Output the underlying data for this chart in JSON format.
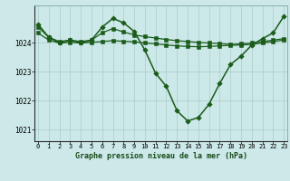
{
  "bg_color": "#cce8e8",
  "grid_color": "#aacccc",
  "line_color": "#1a5c1a",
  "xlim": [
    -0.3,
    23.3
  ],
  "ylim": [
    1020.6,
    1025.3
  ],
  "yticks": [
    1021,
    1022,
    1023,
    1024
  ],
  "xticks": [
    0,
    1,
    2,
    3,
    4,
    5,
    6,
    7,
    8,
    9,
    10,
    11,
    12,
    13,
    14,
    15,
    16,
    17,
    18,
    19,
    20,
    21,
    22,
    23
  ],
  "title": "Graphe pression niveau de la mer (hPa)",
  "series": [
    {
      "x": [
        0,
        1,
        2,
        3,
        4,
        5,
        6,
        7,
        8,
        9,
        10,
        11,
        12,
        13,
        14,
        15,
        16,
        17,
        18,
        19,
        20,
        21,
        22,
        23
      ],
      "y": [
        1024.65,
        1024.2,
        1024.0,
        1024.1,
        1024.0,
        1024.1,
        1024.55,
        1024.85,
        1024.7,
        1024.4,
        1023.75,
        1022.95,
        1022.5,
        1021.65,
        1021.3,
        1021.42,
        1021.88,
        1022.6,
        1023.25,
        1023.55,
        1023.93,
        1024.15,
        1024.35,
        1024.93
      ],
      "marker": "D",
      "markersize": 2.8,
      "linewidth": 1.1
    },
    {
      "x": [
        0,
        1,
        2,
        3,
        4,
        5,
        6,
        7,
        8,
        9,
        10,
        11,
        12,
        13,
        14,
        15,
        16,
        17,
        18,
        19,
        20,
        21,
        22,
        23
      ],
      "y": [
        1024.55,
        1024.2,
        1024.05,
        1024.1,
        1024.05,
        1024.1,
        1024.35,
        1024.5,
        1024.38,
        1024.28,
        1024.22,
        1024.17,
        1024.12,
        1024.08,
        1024.05,
        1024.02,
        1024.0,
        1023.98,
        1023.95,
        1023.97,
        1024.0,
        1024.05,
        1024.1,
        1024.15
      ],
      "marker": "s",
      "markersize": 2.2,
      "linewidth": 0.9
    },
    {
      "x": [
        0,
        1,
        2,
        3,
        4,
        5,
        6,
        7,
        8,
        9,
        10,
        11,
        12,
        13,
        14,
        15,
        16,
        17,
        18,
        19,
        20,
        21,
        22,
        23
      ],
      "y": [
        1024.35,
        1024.1,
        1024.0,
        1024.02,
        1024.0,
        1024.02,
        1024.05,
        1024.08,
        1024.06,
        1024.04,
        1024.0,
        1023.97,
        1023.93,
        1023.9,
        1023.88,
        1023.87,
        1023.88,
        1023.9,
        1023.92,
        1023.93,
        1023.95,
        1024.0,
        1024.05,
        1024.1
      ],
      "marker": "s",
      "markersize": 2.2,
      "linewidth": 0.9
    }
  ]
}
